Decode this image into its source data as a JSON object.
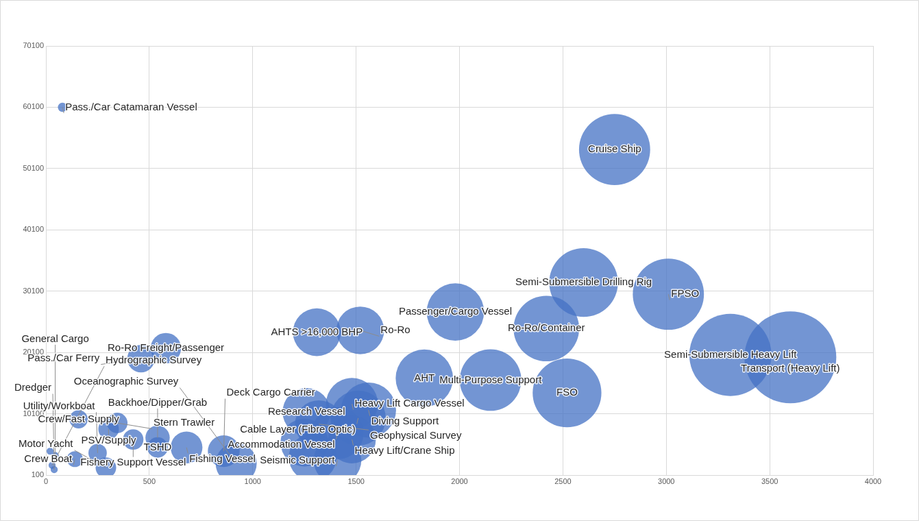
{
  "chart_data": {
    "type": "bubble",
    "grid": true,
    "legend": false,
    "xlim": [
      0,
      4000
    ],
    "xticks": [
      0,
      500,
      1000,
      1500,
      2000,
      2500,
      3000,
      3500,
      4000
    ],
    "ylim": [
      100,
      70100
    ],
    "yticks": [
      100,
      10100,
      20100,
      30100,
      40100,
      50100,
      60100,
      70100
    ],
    "x": [
      80,
      2750,
      2600,
      3010,
      1980,
      2420,
      3310,
      3600,
      1310,
      1520,
      580,
      460,
      1830,
      2150,
      2520,
      1260,
      1480,
      1560,
      1510,
      1320,
      1410,
      1480,
      1250,
      1410,
      1290,
      158,
      345,
      303,
      422,
      540,
      540,
      680,
      860,
      920,
      250,
      140,
      290,
      20,
      45,
      30,
      40
    ],
    "series": [
      {
        "color": "#4472c4",
        "values": [
          60100,
          53200,
          31500,
          29600,
          26700,
          24000,
          19700,
          19300,
          23400,
          23700,
          20800,
          19100,
          15900,
          15600,
          13500,
          10400,
          11700,
          10700,
          9400,
          8400,
          6900,
          5900,
          5400,
          2500,
          3000,
          9200,
          8600,
          7600,
          5900,
          6200,
          4600,
          4600,
          4000,
          2000,
          3700,
          2700,
          1300,
          4000,
          3300,
          1700,
          1000
        ],
        "sizes": [
          0.01,
          0.6,
          0.56,
          0.6,
          0.39,
          0.51,
          0.8,
          1,
          0.27,
          0.27,
          0.11,
          0.09,
          0.39,
          0.45,
          0.56,
          0.27,
          0.32,
          0.36,
          0.36,
          0.27,
          0.32,
          0.27,
          0.27,
          0.27,
          0.27,
          0.04,
          0.05,
          0.05,
          0.05,
          0.07,
          0.05,
          0.12,
          0.12,
          0.2,
          0.04,
          0.03,
          0.05,
          0.006,
          0.006,
          0.006,
          0.006
        ]
      }
    ],
    "annotations": [
      {
        "text": "Pass./Car Catamaran Vessel",
        "x": 80,
        "y": 60100
      },
      {
        "text": "Cruise Ship",
        "x": 2750,
        "y": 53200
      },
      {
        "text": "Semi-Submersible Drilling Rig",
        "x": 2600,
        "y": 31500
      },
      {
        "text": "FPSO",
        "x": 3010,
        "y": 29600
      },
      {
        "text": "Passenger/Cargo Vessel",
        "x": 1980,
        "y": 26700
      },
      {
        "text": "Ro-Ro/Container",
        "x": 2420,
        "y": 24000
      },
      {
        "text": "Semi-Submersible Heavy Lift",
        "x": 3310,
        "y": 19700
      },
      {
        "text": "Transport (Heavy Lift)",
        "x": 3600,
        "y": 19300
      },
      {
        "text": "AHTS >16,000 BHP",
        "x": 1310,
        "y": 23400
      },
      {
        "text": "Ro-Ro",
        "x": 1520,
        "y": 23700
      },
      {
        "text": "Ro-Ro Freight/Passenger",
        "x": 580,
        "y": 20800
      },
      {
        "text": "Pass./Car Ferry",
        "x": 460,
        "y": 19100
      },
      {
        "text": "AHT",
        "x": 1830,
        "y": 15900
      },
      {
        "text": "Multi-Purpose Support",
        "x": 2150,
        "y": 15600
      },
      {
        "text": "FSO",
        "x": 2520,
        "y": 13500
      },
      {
        "text": "Research Vessel",
        "x": 1260,
        "y": 10400
      },
      {
        "text": "Heavy Lift Cargo Vessel",
        "x": 1480,
        "y": 11700
      },
      {
        "text": "Diving Support",
        "x": 1560,
        "y": 10700
      },
      {
        "text": "Cable Layer (Fibre Optic)",
        "x": 1510,
        "y": 9400
      },
      {
        "text": "Geophysical Survey",
        "x": 1320,
        "y": 8400
      },
      {
        "text": "Accommodation Vessel",
        "x": 1410,
        "y": 6900
      },
      {
        "text": "Heavy Lift/Crane Ship",
        "x": 1480,
        "y": 5900
      },
      {
        "text": "Seismic Support",
        "x": 1410,
        "y": 2500
      },
      {
        "text": "Crew/Fast Supply",
        "x": 158,
        "y": 9200
      },
      {
        "text": "Stern Trawler",
        "x": 345,
        "y": 8600
      },
      {
        "text": "PSV/Supply",
        "x": 303,
        "y": 7600
      },
      {
        "text": "Fishery Support Vessel",
        "x": 422,
        "y": 5900
      },
      {
        "text": "Backhoe/Dipper/Grab",
        "x": 540,
        "y": 6200
      },
      {
        "text": "TSHD",
        "x": 540,
        "y": 4600
      },
      {
        "text": "Fishing Vessel",
        "x": 680,
        "y": 4600
      },
      {
        "text": "Deck Cargo Carrier",
        "x": 860,
        "y": 4000
      },
      {
        "text": "Oceanographic Survey",
        "x": 920,
        "y": 2000
      },
      {
        "text": "Utility/Workboat",
        "x": 250,
        "y": 3700
      },
      {
        "text": "Crew Boat",
        "x": 140,
        "y": 2700
      },
      {
        "text": "Motor Yacht",
        "x": 290,
        "y": 1300
      },
      {
        "text": "General Cargo",
        "x": 45,
        "y": 3300
      },
      {
        "text": "Hydrographic Survey",
        "x": 30,
        "y": 1700
      },
      {
        "text": "Dredger",
        "x": 40,
        "y": 1000
      }
    ]
  }
}
